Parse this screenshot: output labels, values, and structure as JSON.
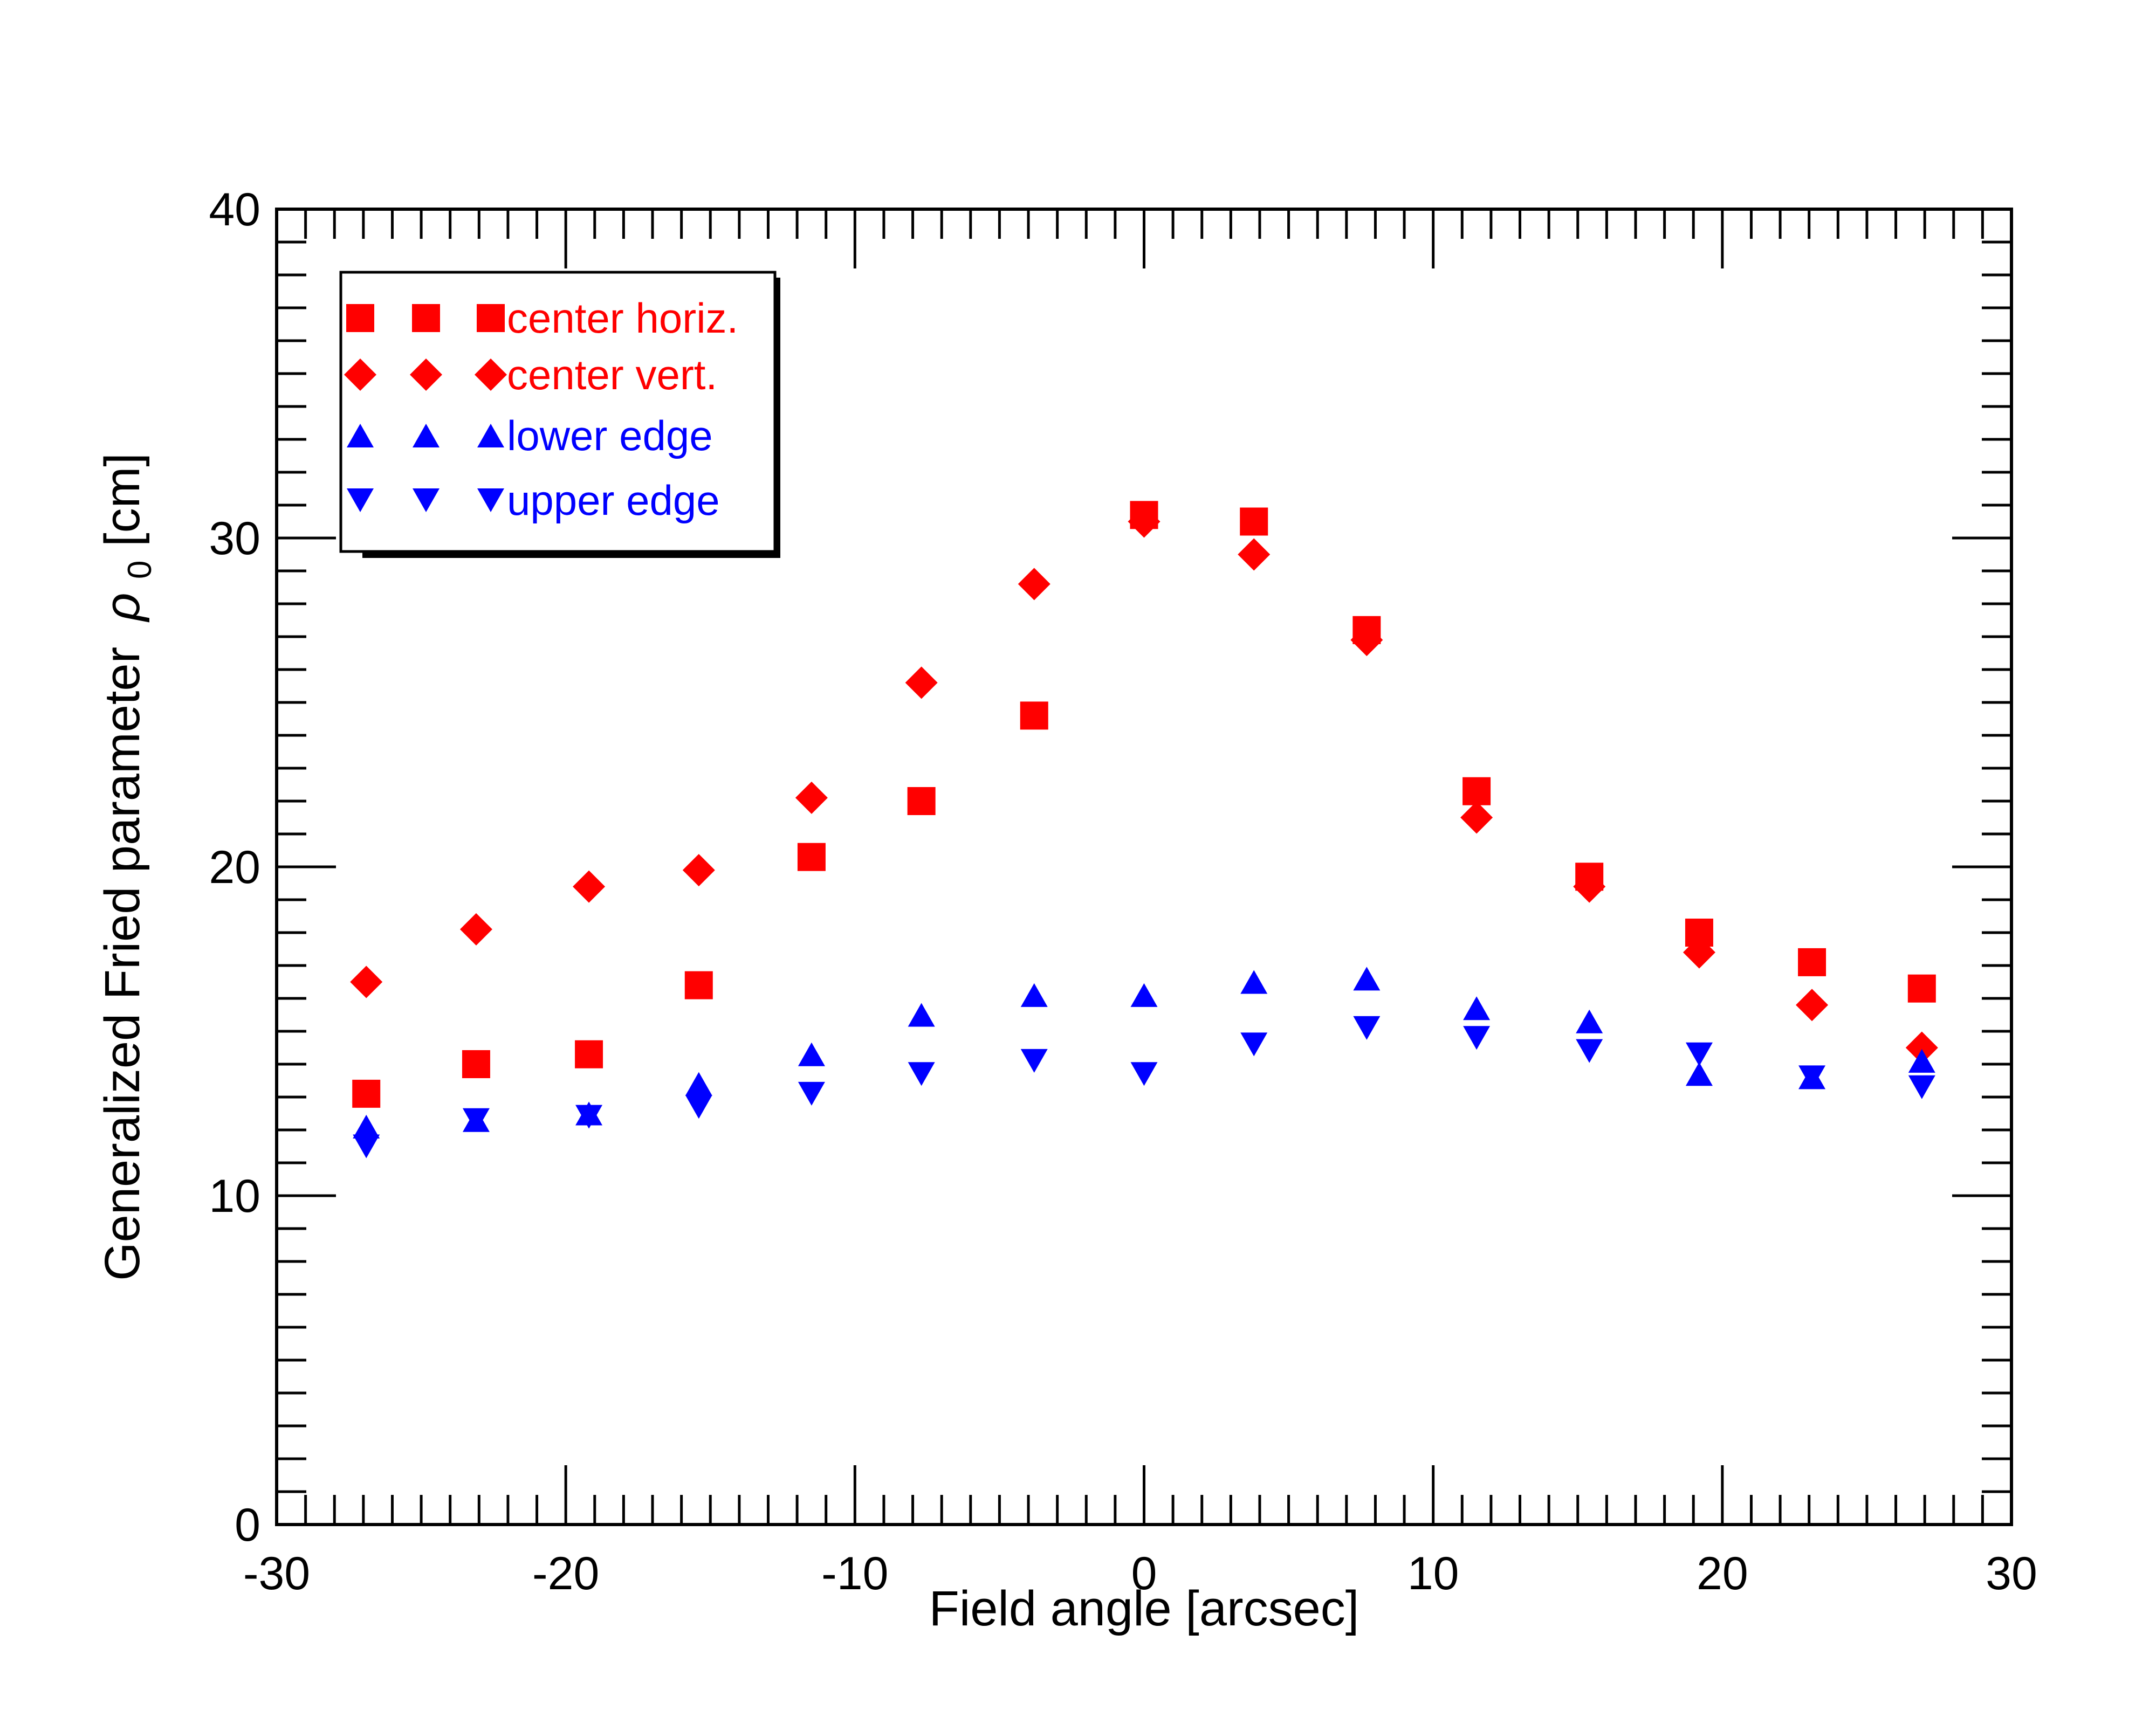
{
  "chart_data": {
    "type": "scatter",
    "xlabel": "Field angle [arcsec]",
    "ylabel": "Generalized Fried parameter",
    "ylabel_symbol": "ρ",
    "ylabel_subscript": "0",
    "ylabel_unit": " [cm]",
    "xlim": [
      -30,
      30
    ],
    "ylim": [
      0,
      40
    ],
    "x_ticks": [
      -30,
      -20,
      -10,
      0,
      10,
      20,
      30
    ],
    "y_ticks": [
      0,
      10,
      20,
      30,
      40
    ],
    "x_tick_labels": [
      "-30",
      "-20",
      "-10",
      "0",
      "10",
      "20",
      "30"
    ],
    "y_tick_labels": [
      "0",
      "10",
      "20",
      "30",
      "40"
    ],
    "x_minor_step": 1,
    "y_minor_step": 1,
    "grid": false,
    "legend_position": "top-left",
    "x": [
      -26.9,
      -23.1,
      -19.2,
      -15.4,
      -11.5,
      -7.7,
      -3.8,
      0,
      3.8,
      7.7,
      11.5,
      15.4,
      19.2,
      23.1,
      26.9
    ],
    "series": [
      {
        "name": "center horiz.",
        "marker": "square",
        "color": "#ff0000",
        "values": [
          13.1,
          14.0,
          14.3,
          16.4,
          20.3,
          22.0,
          24.6,
          30.7,
          30.5,
          27.2,
          22.3,
          19.7,
          18.0,
          17.1,
          16.3
        ]
      },
      {
        "name": "center vert.",
        "marker": "diamond",
        "color": "#ff0000",
        "values": [
          16.5,
          18.1,
          19.4,
          19.9,
          22.1,
          25.6,
          28.6,
          30.5,
          29.5,
          26.9,
          21.5,
          19.4,
          17.4,
          15.8,
          14.5
        ]
      },
      {
        "name": "lower edge",
        "marker": "triangle-up",
        "color": "#0000ff",
        "values": [
          12.1,
          12.3,
          12.5,
          13.4,
          14.3,
          15.5,
          16.1,
          16.1,
          16.5,
          16.6,
          15.7,
          15.3,
          13.7,
          13.6,
          14.1
        ]
      },
      {
        "name": "upper edge",
        "marker": "triangle-down",
        "color": "#0000ff",
        "values": [
          11.5,
          12.3,
          12.4,
          12.7,
          13.1,
          13.7,
          14.1,
          13.7,
          14.6,
          15.1,
          14.8,
          14.4,
          14.3,
          13.6,
          13.3
        ]
      }
    ]
  }
}
